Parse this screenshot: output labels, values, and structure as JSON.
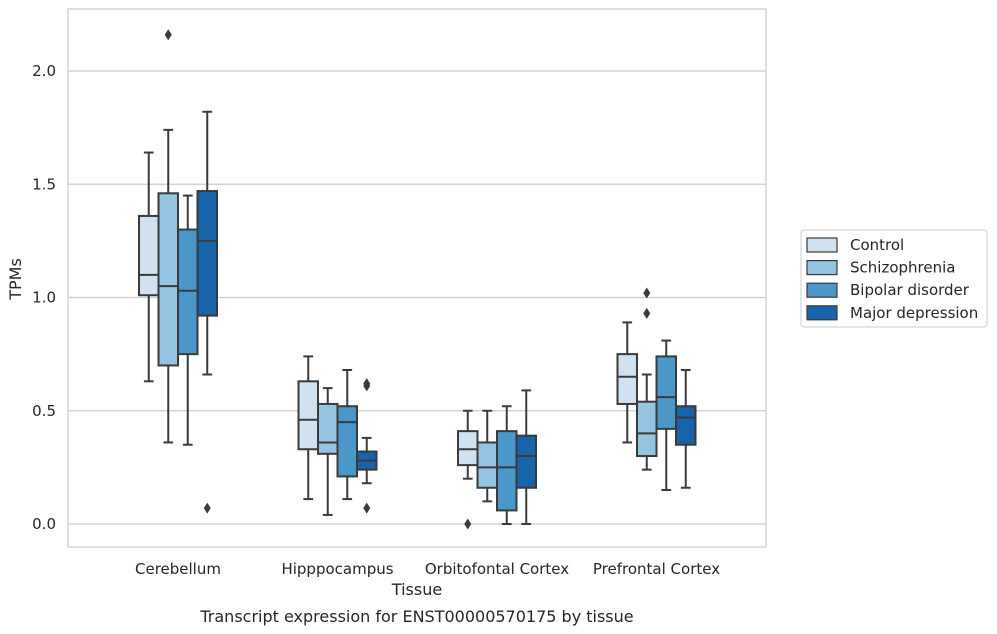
{
  "chart_data": {
    "type": "boxplot",
    "caption": "Transcript expression for ENST00000570175 by tissue",
    "xlabel": "Tissue",
    "ylabel": "TPMs",
    "ylim": [
      -0.1,
      2.27
    ],
    "yticks": [
      0.0,
      0.5,
      1.0,
      1.5,
      2.0
    ],
    "ytick_labels": [
      "0.0",
      "0.5",
      "1.0",
      "1.5",
      "2.0"
    ],
    "grid": "horizontal",
    "legend_position": "right",
    "categories": [
      "Cerebellum",
      "Hipppocampus",
      "Orbitofontal Cortex",
      "Prefrontal Cortex"
    ],
    "series": [
      {
        "name": "Control",
        "color": "#d0e1f2",
        "boxes": [
          {
            "whislo": 0.63,
            "q1": 1.01,
            "med": 1.1,
            "q3": 1.36,
            "whishi": 1.64,
            "fliers": []
          },
          {
            "whislo": 0.11,
            "q1": 0.33,
            "med": 0.46,
            "q3": 0.63,
            "whishi": 0.74,
            "fliers": []
          },
          {
            "whislo": 0.2,
            "q1": 0.26,
            "med": 0.33,
            "q3": 0.41,
            "whishi": 0.5,
            "fliers": [
              0.0
            ]
          },
          {
            "whislo": 0.36,
            "q1": 0.53,
            "med": 0.65,
            "q3": 0.75,
            "whishi": 0.89,
            "fliers": []
          }
        ]
      },
      {
        "name": "Schizophrenia",
        "color": "#94c4df",
        "boxes": [
          {
            "whislo": 0.36,
            "q1": 0.7,
            "med": 1.05,
            "q3": 1.46,
            "whishi": 1.74,
            "fliers": [
              2.16
            ]
          },
          {
            "whislo": 0.04,
            "q1": 0.31,
            "med": 0.36,
            "q3": 0.53,
            "whishi": 0.6,
            "fliers": []
          },
          {
            "whislo": 0.1,
            "q1": 0.16,
            "med": 0.25,
            "q3": 0.36,
            "whishi": 0.5,
            "fliers": []
          },
          {
            "whislo": 0.24,
            "q1": 0.3,
            "med": 0.4,
            "q3": 0.54,
            "whishi": 0.66,
            "fliers": [
              0.93,
              1.02
            ]
          }
        ]
      },
      {
        "name": "Bipolar disorder",
        "color": "#4a98c9",
        "boxes": [
          {
            "whislo": 0.35,
            "q1": 0.75,
            "med": 1.03,
            "q3": 1.3,
            "whishi": 1.45,
            "fliers": []
          },
          {
            "whislo": 0.11,
            "q1": 0.21,
            "med": 0.45,
            "q3": 0.52,
            "whishi": 0.68,
            "fliers": []
          },
          {
            "whislo": 0.0,
            "q1": 0.06,
            "med": 0.25,
            "q3": 0.41,
            "whishi": 0.52,
            "fliers": []
          },
          {
            "whislo": 0.15,
            "q1": 0.42,
            "med": 0.56,
            "q3": 0.74,
            "whishi": 0.81,
            "fliers": []
          }
        ]
      },
      {
        "name": "Major depression",
        "color": "#1764ab",
        "boxes": [
          {
            "whislo": 0.66,
            "q1": 0.92,
            "med": 1.25,
            "q3": 1.47,
            "whishi": 1.82,
            "fliers": [
              0.07
            ]
          },
          {
            "whislo": 0.18,
            "q1": 0.24,
            "med": 0.28,
            "q3": 0.32,
            "whishi": 0.38,
            "fliers": [
              0.61,
              0.62,
              0.07
            ]
          },
          {
            "whislo": 0.0,
            "q1": 0.16,
            "med": 0.3,
            "q3": 0.39,
            "whishi": 0.59,
            "fliers": []
          },
          {
            "whislo": 0.16,
            "q1": 0.35,
            "med": 0.47,
            "q3": 0.52,
            "whishi": 0.68,
            "fliers": []
          }
        ]
      }
    ]
  }
}
